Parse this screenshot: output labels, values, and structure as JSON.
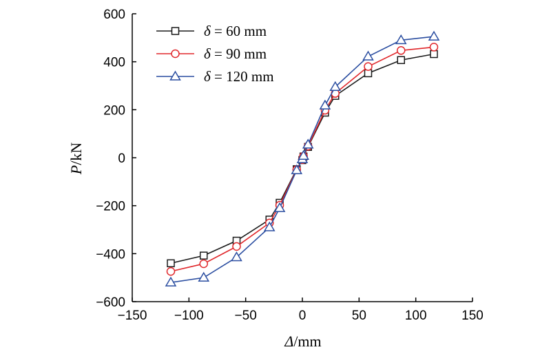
{
  "chart_data": {
    "type": "line",
    "title": "",
    "xlabel": {
      "symbol": "Δ",
      "unit": "/mm"
    },
    "ylabel": {
      "symbol": "P",
      "unit": "/kN"
    },
    "xlim": [
      -150,
      150
    ],
    "ylim": [
      -600,
      600
    ],
    "xticks": [
      -150,
      -100,
      -50,
      0,
      50,
      100,
      150
    ],
    "yticks": [
      -600,
      -400,
      -200,
      0,
      200,
      400,
      600
    ],
    "grid": false,
    "legend_position": "top-left",
    "series": [
      {
        "name": "δ = 60 mm",
        "legend": {
          "symbol": "δ",
          "rest": " = 60 mm"
        },
        "color": "#1a1a1a",
        "marker": "square",
        "x": [
          -116,
          -87,
          -58,
          -29,
          -20,
          -5,
          0,
          1,
          5,
          20,
          29,
          58,
          87,
          116
        ],
        "y": [
          -440,
          -408,
          -346,
          -258,
          -188,
          -48,
          -10,
          5,
          45,
          188,
          258,
          352,
          407,
          432
        ]
      },
      {
        "name": "δ = 90 mm",
        "legend": {
          "symbol": "δ",
          "rest": " = 90 mm"
        },
        "color": "#e0262a",
        "marker": "circle",
        "x": [
          -116,
          -87,
          -58,
          -29,
          -20,
          -5,
          0,
          1,
          5,
          20,
          29,
          58,
          87,
          116
        ],
        "y": [
          -474,
          -442,
          -370,
          -272,
          -198,
          -50,
          -8,
          6,
          48,
          198,
          268,
          380,
          447,
          461
        ]
      },
      {
        "name": "δ = 120 mm",
        "legend": {
          "symbol": "δ",
          "rest": " = 120 mm"
        },
        "color": "#2a4da0",
        "marker": "triangle",
        "x": [
          -116,
          -87,
          -58,
          -29,
          -20,
          -5,
          0,
          1,
          5,
          20,
          29,
          58,
          87,
          116
        ],
        "y": [
          -520,
          -500,
          -415,
          -290,
          -210,
          -52,
          -6,
          8,
          55,
          218,
          295,
          422,
          490,
          505
        ]
      }
    ]
  }
}
